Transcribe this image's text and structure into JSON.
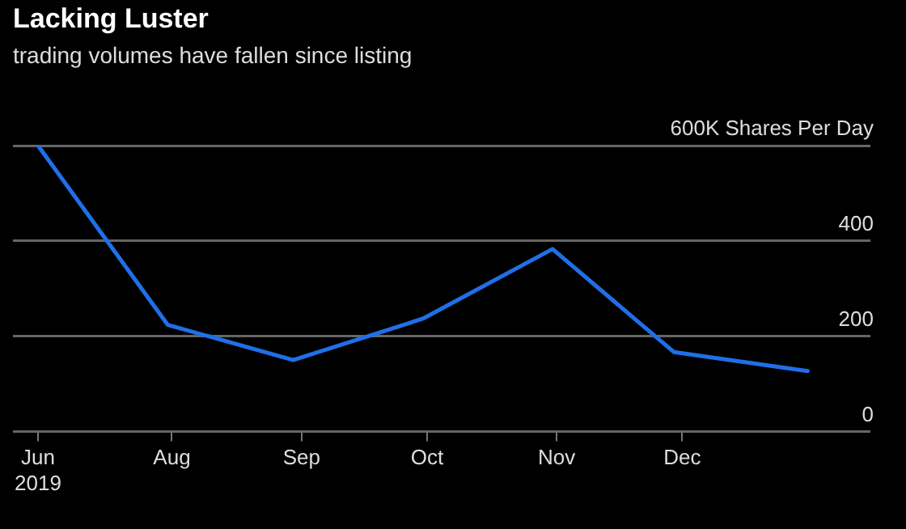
{
  "chart_data": {
    "type": "line",
    "title": "Lacking Luster",
    "subtitle": "trading volumes have fallen since listing",
    "x": [
      "2019-06-30",
      "2019-07-31",
      "2019-08-30",
      "2019-09-30",
      "2019-10-31",
      "2019-11-29",
      "2019-12-31"
    ],
    "series": [
      {
        "color": "#1f6fe8",
        "values": [
          600,
          224,
          150,
          237,
          383,
          167,
          127
        ]
      }
    ],
    "xlim": [
      "2019-06-24",
      "2020-01-15"
    ],
    "xticks": [
      {
        "value": "2019-06-30",
        "label": "Jun\n2019"
      },
      {
        "value": "2019-08-01",
        "label": "Aug"
      },
      {
        "value": "2019-09-01",
        "label": "Sep"
      },
      {
        "value": "2019-10-01",
        "label": "Oct"
      },
      {
        "value": "2019-11-01",
        "label": "Nov"
      },
      {
        "value": "2019-12-01",
        "label": "Dec"
      }
    ],
    "ylim": [
      0,
      600
    ],
    "yticks": [
      0,
      200,
      400,
      {
        "value": 600,
        "label": "600K Shares Per Day"
      }
    ],
    "grid": "y",
    "legend": false,
    "marker": "none",
    "line_style": "solid"
  }
}
